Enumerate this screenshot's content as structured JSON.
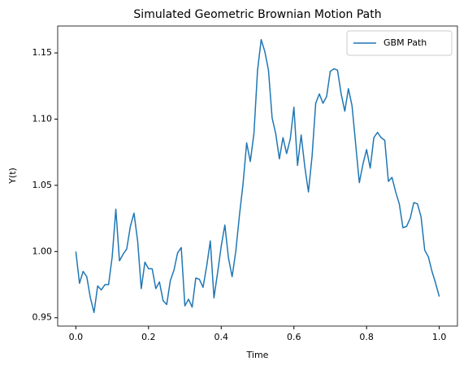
{
  "chart_data": {
    "type": "line",
    "title": "Simulated Geometric Brownian Motion Path",
    "x_label": "Time",
    "y_label": "Y(t)",
    "x": [
      0,
      0.01,
      0.02,
      0.03,
      0.04,
      0.05,
      0.06,
      0.07,
      0.08,
      0.09,
      0.1,
      0.11,
      0.12,
      0.13,
      0.14,
      0.15,
      0.16,
      0.17,
      0.18,
      0.19,
      0.2,
      0.21,
      0.22,
      0.23,
      0.24,
      0.25,
      0.26,
      0.27,
      0.28,
      0.29,
      0.3,
      0.31,
      0.32,
      0.33,
      0.34,
      0.35,
      0.36,
      0.37,
      0.38,
      0.39,
      0.4,
      0.41,
      0.42,
      0.43,
      0.44,
      0.45,
      0.46,
      0.47,
      0.48,
      0.49,
      0.5,
      0.51,
      0.52,
      0.53,
      0.54,
      0.55,
      0.56,
      0.57,
      0.58,
      0.59,
      0.6,
      0.61,
      0.62,
      0.63,
      0.64,
      0.65,
      0.66,
      0.67,
      0.68,
      0.69,
      0.7,
      0.71,
      0.72,
      0.73,
      0.74,
      0.75,
      0.76,
      0.77,
      0.78,
      0.79,
      0.8,
      0.81,
      0.82,
      0.83,
      0.84,
      0.85,
      0.86,
      0.87,
      0.88,
      0.89,
      0.9,
      0.91,
      0.92,
      0.93,
      0.94,
      0.95,
      0.96,
      0.97,
      0.98,
      0.99,
      1
    ],
    "series": [
      {
        "name": "GBM Path",
        "color": "#1f77b4",
        "values": [
          1.0,
          0.976,
          0.985,
          0.981,
          0.965,
          0.954,
          0.974,
          0.971,
          0.975,
          0.975,
          0.996,
          1.032,
          0.993,
          0.998,
          1.002,
          1.019,
          1.029,
          1.008,
          0.972,
          0.992,
          0.987,
          0.987,
          0.972,
          0.977,
          0.963,
          0.96,
          0.978,
          0.986,
          0.999,
          1.003,
          0.959,
          0.964,
          0.958,
          0.98,
          0.979,
          0.973,
          0.989,
          1.008,
          0.965,
          0.984,
          1.004,
          1.02,
          0.995,
          0.981,
          1.0,
          1.027,
          1.051,
          1.082,
          1.068,
          1.089,
          1.137,
          1.16,
          1.151,
          1.137,
          1.101,
          1.089,
          1.07,
          1.086,
          1.074,
          1.085,
          1.109,
          1.065,
          1.088,
          1.064,
          1.045,
          1.072,
          1.112,
          1.119,
          1.112,
          1.117,
          1.136,
          1.138,
          1.137,
          1.119,
          1.106,
          1.123,
          1.11,
          1.081,
          1.052,
          1.066,
          1.077,
          1.063,
          1.086,
          1.09,
          1.086,
          1.084,
          1.053,
          1.056,
          1.045,
          1.036,
          1.018,
          1.019,
          1.025,
          1.037,
          1.036,
          1.026,
          1.001,
          0.996,
          0.985,
          0.976,
          0.966
        ]
      }
    ],
    "xlim": [
      -0.05,
      1.05
    ],
    "ylim": [
      0.9437,
      1.1703
    ],
    "xticks": [
      {
        "value": 0,
        "label": "0.0"
      },
      0.2,
      0.4,
      0.6,
      0.8,
      {
        "value": 1,
        "label": "1.0"
      }
    ],
    "yticks": [
      0.95,
      {
        "value": 1,
        "label": "1.00"
      },
      1.05,
      {
        "value": 1.1,
        "label": "1.10"
      },
      1.15
    ],
    "legend": "upper right",
    "grid": false
  }
}
